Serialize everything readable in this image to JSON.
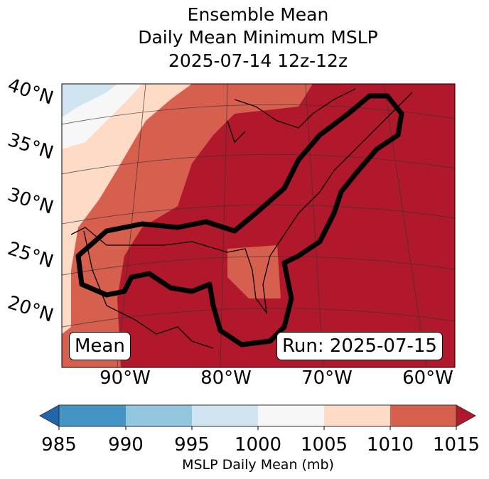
{
  "title": {
    "line1": "Ensemble Mean",
    "line2": "Daily Mean Minimum MSLP",
    "line3": "2025-07-14 12z-12z"
  },
  "map": {
    "lat_labels": [
      "40°N",
      "35°N",
      "30°N",
      "25°N",
      "20°N"
    ],
    "lon_labels": [
      "90°W",
      "80°W",
      "70°W",
      "60°W"
    ],
    "left_label": "Mean",
    "right_label": "Run: 2025-07-15",
    "contour_color": "#000000"
  },
  "colorbar": {
    "ticks": [
      "985",
      "990",
      "995",
      "1000",
      "1005",
      "1010",
      "1015"
    ],
    "label": "MSLP Daily Mean (mb)",
    "colors": {
      "under": "#2166ac",
      "bins": [
        "#4393c3",
        "#92c5de",
        "#d1e5f0",
        "#f7f7f7",
        "#fddbc7",
        "#d6604d"
      ],
      "over": "#b2182b"
    }
  }
}
